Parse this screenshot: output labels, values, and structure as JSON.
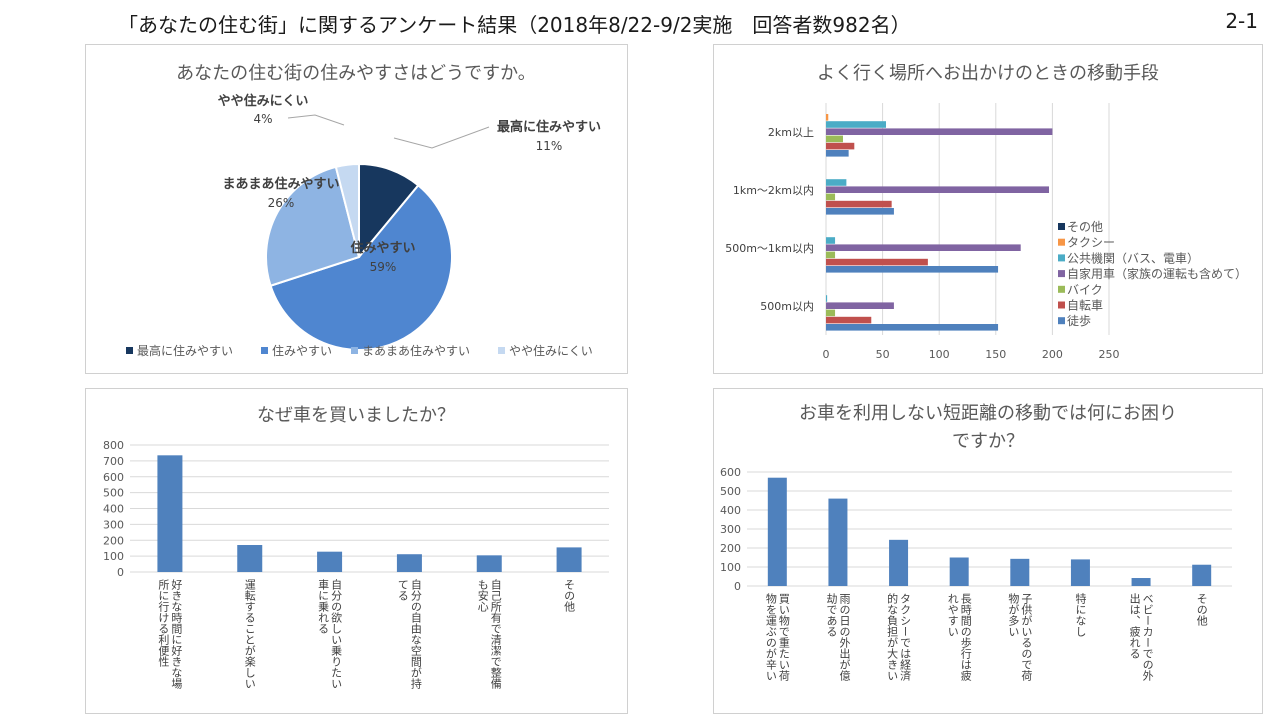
{
  "header": {
    "title": "「あなたの住む街」に関するアンケート結果（2018年8/22-9/2実施　回答者数982名）",
    "page_number": "2-1"
  },
  "chart_data": [
    {
      "type": "pie",
      "title": "あなたの住む街の住みやすさはどうですか。",
      "categories": [
        "最高に住みやすい",
        "住みやすい",
        "まあまあ住みやすい",
        "やや住みにくい"
      ],
      "values": [
        11,
        59,
        26,
        4
      ],
      "value_labels": [
        "11%",
        "59%",
        "26%",
        "4%"
      ],
      "colors": [
        "#17375e",
        "#4f86d0",
        "#8eb4e3",
        "#c5d9f1"
      ],
      "legend": "bottom"
    },
    {
      "type": "bar",
      "orientation": "horizontal",
      "title": "よく行く場所へお出かけのときの移動手段",
      "categories": [
        "2km以上",
        "1km～2km以内",
        "500m～1km以内",
        "500m以内"
      ],
      "series": [
        {
          "name": "その他",
          "color": "#17375e",
          "values": [
            0,
            0,
            0,
            0
          ]
        },
        {
          "name": "タクシー",
          "color": "#f79646",
          "values": [
            2,
            0,
            0,
            0
          ]
        },
        {
          "name": "公共機関（バス、電車）",
          "color": "#4bacc6",
          "values": [
            53,
            18,
            8,
            1
          ]
        },
        {
          "name": "自家用車（家族の運転も含めて）",
          "color": "#8064a2",
          "values": [
            200,
            197,
            172,
            60
          ]
        },
        {
          "name": "バイク",
          "color": "#9bbb59",
          "values": [
            15,
            8,
            8,
            8
          ]
        },
        {
          "name": "自転車",
          "color": "#c0504d",
          "values": [
            25,
            58,
            90,
            40
          ]
        },
        {
          "name": "徒歩",
          "color": "#4f81bd",
          "values": [
            20,
            60,
            152,
            152
          ]
        }
      ],
      "xticks": [
        "0",
        "50",
        "100",
        "150",
        "200",
        "250"
      ],
      "xlim": [
        0,
        250
      ],
      "grid": true,
      "legend": "right"
    },
    {
      "type": "bar",
      "title": "なぜ車を買いましたか？",
      "categories": [
        "好きな時間に好きな場所に行ける利便性",
        "運転することが楽しい",
        "自分の欲しい乗りたい車に乗れる",
        "自分の自由な空間が持てる",
        "自己所有で清潔で整備も安心",
        "その他"
      ],
      "values": [
        735,
        170,
        128,
        112,
        105,
        155
      ],
      "yticks": [
        "0",
        "100",
        "200",
        "300",
        "400",
        "500",
        "600",
        "700",
        "800"
      ],
      "ylim": [
        0,
        800
      ],
      "color": "#4f81bd",
      "grid": true
    },
    {
      "type": "bar",
      "title": "お車を利用しない短距離の移動では何にお困りですか？",
      "categories": [
        "買い物で重たい荷物を運ぶのが辛い",
        "雨の日の外出が億劫である",
        "タクシーでは経済的な負担が大きい",
        "長時間の歩行は疲れやすい",
        "子供がいるので荷物が多い",
        "特になし",
        "ベビーカーでの外出は、疲れる",
        "その他"
      ],
      "values": [
        570,
        460,
        243,
        150,
        143,
        140,
        42,
        112
      ],
      "yticks": [
        "0",
        "100",
        "200",
        "300",
        "400",
        "500",
        "600"
      ],
      "ylim": [
        0,
        600
      ],
      "color": "#4f81bd",
      "grid": true
    }
  ]
}
